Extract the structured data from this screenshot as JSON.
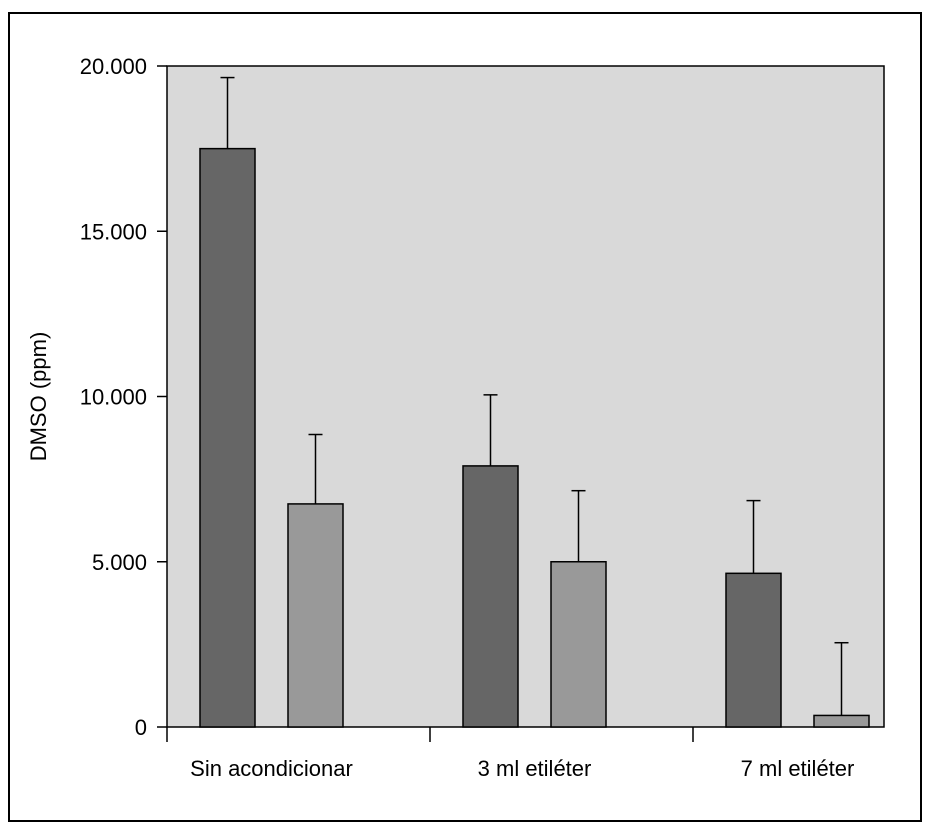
{
  "chart_data": {
    "type": "bar",
    "title": "",
    "xlabel": "",
    "ylabel": "DMSO (ppm)",
    "ylim": [
      0,
      20000
    ],
    "yticks": [
      0,
      5000,
      10000,
      15000,
      20000
    ],
    "ytick_labels": [
      "0",
      "5.000",
      "10.000",
      "15.000",
      "20.000"
    ],
    "grid": false,
    "legend": "none",
    "categories": [
      "Sin acondicionar",
      "3 ml etiléter",
      "7 ml etiléter"
    ],
    "series": [
      {
        "values": [
          17500,
          7900,
          4650
        ],
        "errors": [
          2150,
          2150,
          2200
        ],
        "color": "#666666"
      },
      {
        "values": [
          6750,
          5000,
          350
        ],
        "errors": [
          2100,
          2150,
          2200
        ],
        "color": "#999999"
      }
    ],
    "plot_background": "#d9d9d9"
  }
}
